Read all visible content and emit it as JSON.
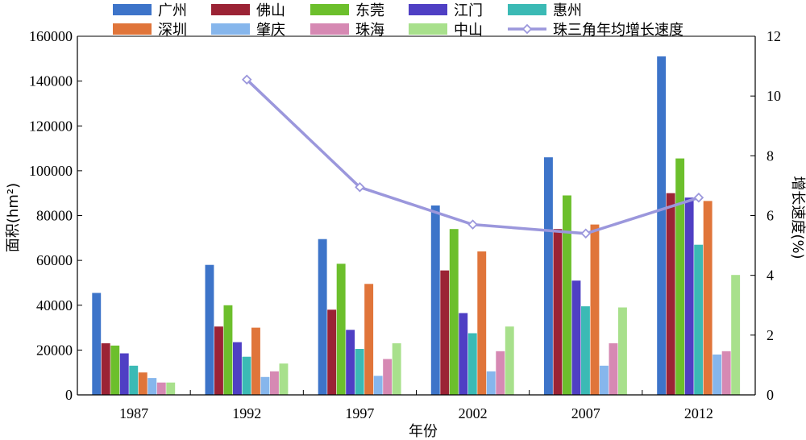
{
  "chart_data": {
    "type": "bar",
    "categories": [
      "1987",
      "1992",
      "1997",
      "2002",
      "2007",
      "2012"
    ],
    "xlabel": "年份",
    "ylabel": "面积(hm²)",
    "y2label": "增长速度(%)",
    "ylim": [
      0,
      160000
    ],
    "y2lim": [
      0,
      12
    ],
    "yticks": [
      "0",
      "20000",
      "40000",
      "60000",
      "80000",
      "100000",
      "120000",
      "140000",
      "160000"
    ],
    "y2ticks": [
      "0",
      "2",
      "4",
      "6",
      "8",
      "10",
      "12"
    ],
    "legend_position": "top",
    "series": [
      {
        "name": "广州",
        "color": "#3d74c9",
        "values": [
          45500,
          58000,
          69500,
          84500,
          106000,
          151000
        ]
      },
      {
        "name": "佛山",
        "color": "#9b2335",
        "values": [
          23000,
          30500,
          38000,
          55500,
          74000,
          90000
        ]
      },
      {
        "name": "东莞",
        "color": "#6cbf2c",
        "values": [
          22000,
          40000,
          58500,
          74000,
          89000,
          105500
        ]
      },
      {
        "name": "江门",
        "color": "#4f3fc4",
        "values": [
          18500,
          23500,
          29000,
          36500,
          51000,
          88000
        ]
      },
      {
        "name": "惠州",
        "color": "#3bbab5",
        "values": [
          13000,
          17000,
          20500,
          27500,
          39500,
          67000
        ]
      },
      {
        "name": "深圳",
        "color": "#e0753a",
        "values": [
          10000,
          30000,
          49500,
          64000,
          76000,
          86500
        ]
      },
      {
        "name": "肇庆",
        "color": "#86b6ec",
        "values": [
          7500,
          8000,
          8500,
          10500,
          13000,
          18000
        ]
      },
      {
        "name": "珠海",
        "color": "#d689b3",
        "values": [
          5500,
          10500,
          16000,
          19500,
          23000,
          19500
        ]
      },
      {
        "name": "中山",
        "color": "#a8e08c",
        "values": [
          5500,
          14000,
          23000,
          30500,
          39000,
          53500
        ]
      }
    ],
    "line_series": {
      "name": "珠三角年均增长速度",
      "color": "#9b97dc",
      "axis": "y2",
      "values": [
        null,
        10.55,
        6.95,
        5.7,
        5.4,
        6.6
      ]
    }
  }
}
